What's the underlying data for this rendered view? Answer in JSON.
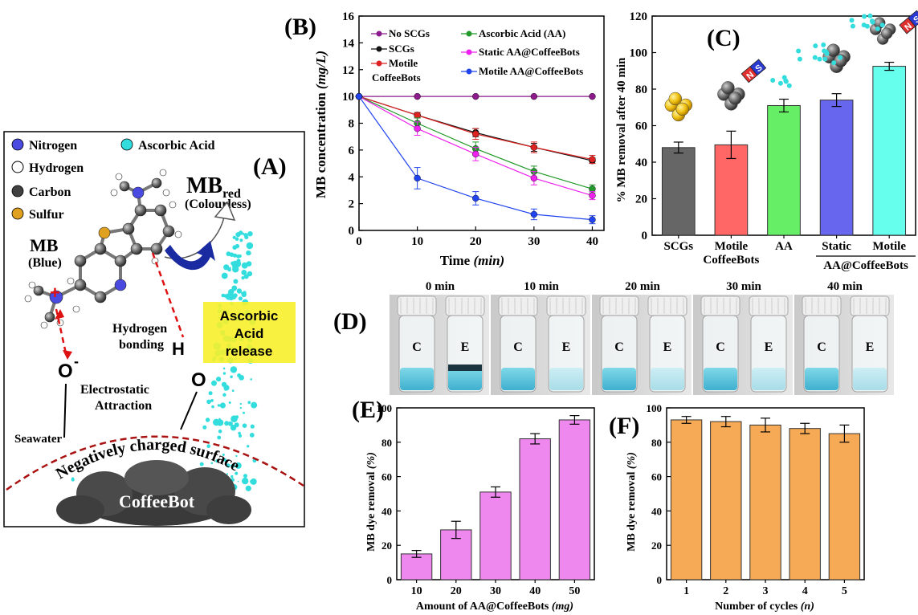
{
  "panelA": {
    "label": "(A)",
    "legend": [
      {
        "name": "Nitrogen",
        "color": "#4a4ae0"
      },
      {
        "name": "Hydrogen",
        "color": "#ffffff"
      },
      {
        "name": "Carbon",
        "color": "#404040"
      },
      {
        "name": "Sulfur",
        "color": "#e0a020"
      },
      {
        "name": "Ascorbic Acid",
        "color": "#33dddd"
      }
    ],
    "mb_red_main": "MB",
    "mb_red_sub": "red",
    "colourless": "(Colourless)",
    "mb": "MB",
    "blue": "(Blue)",
    "hydrogen_bonding_1": "Hydrogen",
    "hydrogen_bonding_2": "bonding",
    "aa_release": [
      "Ascorbic",
      "Acid",
      "release"
    ],
    "h_atom": "H",
    "o_atom1": "O",
    "o_minus": "-",
    "o_atom2": "O",
    "plus": "+",
    "electrostatic_1": "Electrostatic",
    "electrostatic_2": "Attraction",
    "seawater": "Seawater",
    "surface": "Negatively charged surface",
    "coffeebot": "CoffeeBot"
  },
  "panelD": {
    "label": "(D)",
    "times": [
      "0 min",
      "10 min",
      "20 min",
      "30 min",
      "40 min"
    ],
    "c": "C",
    "e": "E"
  },
  "magnet": {
    "n": "N",
    "s": "S"
  },
  "chart_data": [
    {
      "panel": "(B)",
      "type": "line",
      "xlabel": "Time (min)",
      "ylabel": "MB concentration (mg/L)",
      "xlim": [
        0,
        42
      ],
      "ylim": [
        0,
        16
      ],
      "xticks": [
        0,
        10,
        20,
        30,
        40
      ],
      "yticks": [
        0,
        2,
        4,
        6,
        8,
        10,
        12,
        14,
        16
      ],
      "x": [
        0,
        10,
        20,
        30,
        40
      ],
      "series": [
        {
          "name": "No SCGs",
          "color": "#8b1a8b",
          "values": [
            10,
            10,
            10,
            10,
            10
          ],
          "err": [
            0,
            0,
            0,
            0,
            0
          ]
        },
        {
          "name": "SCGs",
          "color": "#111111",
          "values": [
            10,
            8.6,
            7.3,
            6.2,
            5.2
          ],
          "err": [
            0,
            0.2,
            0.3,
            0.3,
            0.2
          ]
        },
        {
          "name": "Motile CoffeeBots",
          "color": "#dd2222",
          "values": [
            10,
            8.6,
            7.2,
            6.2,
            5.3
          ],
          "err": [
            0,
            0.2,
            0.4,
            0.4,
            0.3
          ]
        },
        {
          "name": "Ascorbic Acid (AA)",
          "color": "#22992a",
          "values": [
            10,
            8.0,
            6.1,
            4.4,
            3.1
          ],
          "err": [
            0,
            0.4,
            0.5,
            0.4,
            0.3
          ]
        },
        {
          "name": "Static AA@CoffeeBots",
          "color": "#ee22ee",
          "values": [
            10,
            7.6,
            5.7,
            3.9,
            2.6
          ],
          "err": [
            0,
            0.5,
            0.5,
            0.5,
            0.3
          ]
        },
        {
          "name": "Motile AA@CoffeeBots",
          "color": "#2244ee",
          "values": [
            10,
            3.9,
            2.4,
            1.2,
            0.8
          ],
          "err": [
            0,
            0.8,
            0.5,
            0.4,
            0.3
          ]
        }
      ],
      "legend_labels": {
        "col1": [
          "No SCGs",
          "SCGs",
          "Motile",
          "CoffeeBots"
        ],
        "col2": [
          "Ascorbic Acid (AA)",
          "Static AA@CoffeeBots",
          "Motile AA@CoffeeBots"
        ]
      }
    },
    {
      "panel": "(C)",
      "type": "bar",
      "ylabel": "% MB removal after 40 min",
      "ylim": [
        0,
        120
      ],
      "yticks": [
        0,
        20,
        40,
        60,
        80,
        100,
        120
      ],
      "categories": [
        "SCGs",
        "Motile CoffeeBots",
        "AA",
        "Static AA@CoffeeBots",
        "Motile AA@CoffeeBots"
      ],
      "tick_labels": [
        [
          "SCGs"
        ],
        [
          "Motile",
          "CoffeeBots"
        ],
        [
          "AA"
        ],
        [
          "Static"
        ],
        [
          "Motile"
        ]
      ],
      "group_label": "AA@CoffeeBots",
      "values": [
        48,
        49.5,
        71,
        74,
        92.5
      ],
      "err": [
        3,
        7.5,
        3.5,
        3.5,
        2.2
      ],
      "colors": [
        "#666666",
        "#ff6666",
        "#66ee66",
        "#6666ee",
        "#66ffee"
      ]
    },
    {
      "panel": "(E)",
      "type": "bar",
      "xlabel": "Amount of AA@CoffeeBots (mg)",
      "ylabel": "MB dye removal (%)",
      "ylim": [
        0,
        100
      ],
      "yticks": [
        0,
        20,
        40,
        60,
        80,
        100
      ],
      "categories": [
        "10",
        "20",
        "30",
        "40",
        "50"
      ],
      "values": [
        15,
        29,
        51,
        82,
        93
      ],
      "err": [
        2,
        5,
        3,
        3,
        2.5
      ],
      "color": "#ee88ee"
    },
    {
      "panel": "(F)",
      "type": "bar",
      "xlabel": "Number of cycles (n)",
      "ylabel": "MB dye removal (%)",
      "ylim": [
        0,
        100
      ],
      "yticks": [
        0,
        20,
        40,
        60,
        80,
        100
      ],
      "categories": [
        "1",
        "2",
        "3",
        "4",
        "5"
      ],
      "values": [
        93,
        92,
        90,
        88,
        85
      ],
      "err": [
        2,
        3,
        4,
        3,
        5
      ],
      "color": "#f7aa55"
    }
  ]
}
